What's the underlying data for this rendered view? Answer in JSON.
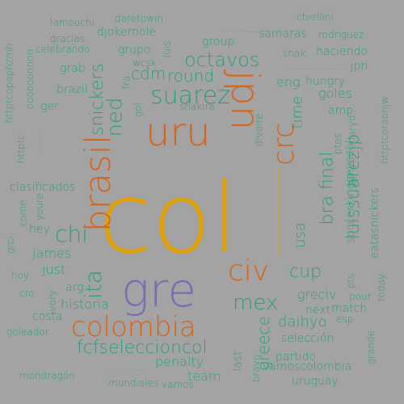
{
  "colors": {
    "background": "#a3a3a3",
    "green": "#2e9e7e",
    "orange": "#d8641a",
    "gold": "#e2a100",
    "purple": "#7d6bb5"
  },
  "words": [
    {
      "id": "col",
      "text": "col",
      "c": "gold"
    },
    {
      "id": "gre",
      "text": "gre",
      "c": "purple"
    },
    {
      "id": "colombia",
      "text": "colombia",
      "c": "orange"
    },
    {
      "id": "uru",
      "text": "uru",
      "c": "orange"
    },
    {
      "id": "jpn",
      "text": "jpn",
      "c": "orange"
    },
    {
      "id": "brasil",
      "text": "brasil",
      "c": "orange"
    },
    {
      "id": "civ",
      "text": "civ",
      "c": "orange"
    },
    {
      "id": "crc",
      "text": "crc",
      "c": "orange"
    },
    {
      "id": "dash-vertical",
      "text": "—————",
      "c": "gold"
    },
    {
      "id": "suarez",
      "text": "suarez",
      "c": "green"
    },
    {
      "id": "octavos",
      "text": "octavos",
      "c": "green"
    },
    {
      "id": "chi",
      "text": "chi",
      "c": "green"
    },
    {
      "id": "ita",
      "text": "ita",
      "c": "green"
    },
    {
      "id": "ned",
      "text": "ned",
      "c": "green"
    },
    {
      "id": "snickers",
      "text": "snickers",
      "c": "green"
    },
    {
      "id": "round",
      "text": "round",
      "c": "green"
    },
    {
      "id": "cdm",
      "text": "cdm",
      "c": "green"
    },
    {
      "id": "cup",
      "text": "cup",
      "c": "green"
    },
    {
      "id": "mex",
      "text": "mex",
      "c": "green"
    },
    {
      "id": "fcfseleccioncol",
      "text": "fcfseleccioncol",
      "c": "green"
    },
    {
      "id": "bra-final",
      "text": "bra final",
      "c": "green"
    },
    {
      "id": "usa",
      "text": "usa",
      "c": "green"
    },
    {
      "id": "luissuarezjp",
      "text": "luissuarezjp",
      "c": "green"
    },
    {
      "id": "time",
      "text": "time",
      "c": "green"
    },
    {
      "id": "greciv",
      "text": "greciv",
      "c": "green"
    },
    {
      "id": "greece",
      "text": "greece",
      "c": "green"
    },
    {
      "id": "daihyo",
      "text": "daihyo",
      "c": "green"
    },
    {
      "id": "next",
      "text": "next",
      "c": "green"
    },
    {
      "id": "james",
      "text": "james",
      "c": "green"
    },
    {
      "id": "just",
      "text": "just",
      "c": "green"
    },
    {
      "id": "historia",
      "text": "historia",
      "c": "green"
    },
    {
      "id": "arg",
      "text": "arg",
      "c": "green"
    },
    {
      "id": "hey",
      "text": "hey",
      "c": "green"
    },
    {
      "id": "eng",
      "text": "eng",
      "c": "green"
    },
    {
      "id": "hungry",
      "text": "hungry",
      "c": "green"
    },
    {
      "id": "goles",
      "text": "goles",
      "c": "green"
    },
    {
      "id": "dots-jpn",
      "text": ".................jpn",
      "c": "green"
    },
    {
      "id": "haciendo",
      "text": "haciendo",
      "c": "green"
    },
    {
      "id": "shak",
      "text": "shak",
      "c": "green"
    },
    {
      "id": "samaras",
      "text": "samaras",
      "c": "green"
    },
    {
      "id": "dots-top",
      "text": "...............",
      "c": "green"
    },
    {
      "id": "rodriguez",
      "text": "rodriguez",
      "c": "green"
    },
    {
      "id": "chiellini",
      "text": "chiellini",
      "c": "green"
    },
    {
      "id": "lamouchi",
      "text": "lamouchi",
      "c": "green"
    },
    {
      "id": "daretowin",
      "text": "daretowin",
      "c": "green"
    },
    {
      "id": "gracias",
      "text": "gracias",
      "c": "green"
    },
    {
      "id": "djokernole",
      "text": "djokernole",
      "c": "green"
    },
    {
      "id": "group",
      "text": "group",
      "c": "green"
    },
    {
      "id": "celebrando",
      "text": "celebrando",
      "c": "green"
    },
    {
      "id": "grupo",
      "text": "grupo",
      "c": "green"
    },
    {
      "id": "luis",
      "text": "luis",
      "c": "green"
    },
    {
      "id": "wcsk",
      "text": "wcsk",
      "c": "green"
    },
    {
      "id": "grab",
      "text": "grab",
      "c": "green"
    },
    {
      "id": "brazil",
      "text": "brazil",
      "c": "green"
    },
    {
      "id": "fra",
      "text": "fra",
      "c": "green"
    },
    {
      "id": "gol",
      "text": "gol",
      "c": "green"
    },
    {
      "id": "shakira",
      "text": "shakira",
      "c": "green"
    },
    {
      "id": "ger",
      "text": "ger",
      "c": "green"
    },
    {
      "id": "httptcopaphzmh",
      "text": "httptcopaphzmh",
      "c": "green"
    },
    {
      "id": "oooooonnnn",
      "text": "oooooonnnn",
      "c": "green"
    },
    {
      "id": "httptc",
      "text": "httptc",
      "c": "green"
    },
    {
      "id": "dots-left",
      "text": "........",
      "c": "green"
    },
    {
      "id": "clasificados",
      "text": "clasificados",
      "c": "green"
    },
    {
      "id": "youre",
      "text": "youre",
      "c": "green"
    },
    {
      "id": "come",
      "text": "come",
      "c": "green"
    },
    {
      "id": "grci",
      "text": "grci",
      "c": "green"
    },
    {
      "id": "hoy",
      "text": "hoy",
      "c": "green"
    },
    {
      "id": "cro",
      "text": "cro",
      "c": "green"
    },
    {
      "id": "ivory",
      "text": "ivory",
      "c": "green"
    },
    {
      "id": "costa",
      "text": "costa",
      "c": "green"
    },
    {
      "id": "goleador",
      "text": "goleador",
      "c": "green"
    },
    {
      "id": "divoire",
      "text": "divoire",
      "c": "green"
    },
    {
      "id": "amp",
      "text": "amp",
      "c": "green"
    },
    {
      "id": "faryd",
      "text": "faryd",
      "c": "green"
    },
    {
      "id": "ptos",
      "text": "ptos",
      "c": "green"
    },
    {
      "id": "jonyscol",
      "text": "jonyscol",
      "c": "green"
    },
    {
      "id": "httptcoraohjw",
      "text": "httptcoraohjw",
      "c": "green"
    },
    {
      "id": "soccerkingjp",
      "text": "soccerkingjp",
      "c": "green"
    },
    {
      "id": "eatasnickers",
      "text": "eatasnickers",
      "c": "green"
    },
    {
      "id": "pts",
      "text": "pts",
      "c": "green"
    },
    {
      "id": "pour",
      "text": "pour",
      "c": "green"
    },
    {
      "id": "today",
      "text": "today",
      "c": "green"
    },
    {
      "id": "match",
      "text": "match",
      "c": "green"
    },
    {
      "id": "esp",
      "text": "esp",
      "c": "green"
    },
    {
      "id": "seleccion",
      "text": "selección",
      "c": "green"
    },
    {
      "id": "partido",
      "text": "partido",
      "c": "green"
    },
    {
      "id": "vamoscolombia",
      "text": "vamoscolombia",
      "c": "green"
    },
    {
      "id": "uruguay",
      "text": "uruguay",
      "c": "green"
    },
    {
      "id": "grande",
      "text": "grande",
      "c": "green"
    },
    {
      "id": "last",
      "text": "last",
      "c": "green"
    },
    {
      "id": "bravo",
      "text": "bravo",
      "c": "green"
    },
    {
      "id": "penalty",
      "text": "penalty",
      "c": "green"
    },
    {
      "id": "dots-bottom",
      "text": "............",
      "c": "green"
    },
    {
      "id": "team",
      "text": "team",
      "c": "green"
    },
    {
      "id": "mundiales",
      "text": "mundiales",
      "c": "green"
    },
    {
      "id": "vamos",
      "text": "vamos",
      "c": "green"
    },
    {
      "id": "mondragon",
      "text": "mondragón",
      "c": "green"
    }
  ]
}
